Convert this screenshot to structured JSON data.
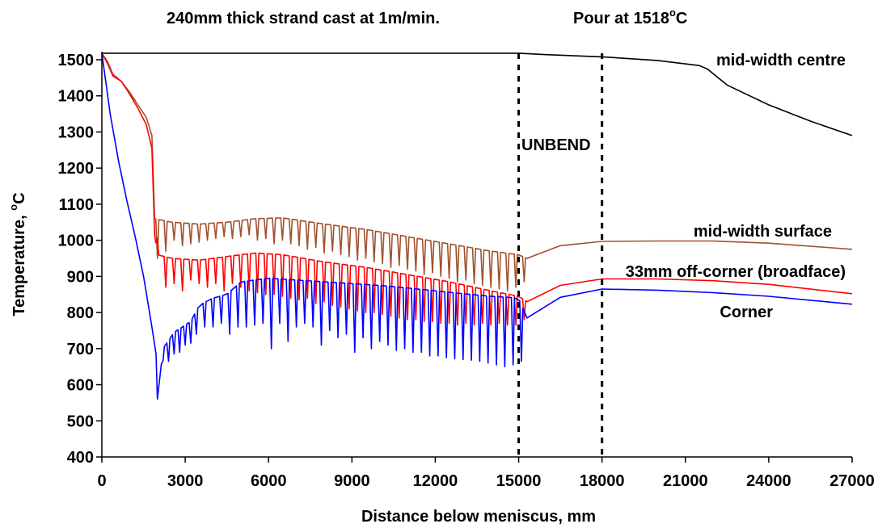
{
  "chart_data": {
    "type": "line",
    "title_part1": "240mm thick strand cast at 1m/min.",
    "title_part2_pre": "Pour at 1518",
    "title_part2_sup": "o",
    "title_part2_post": "C",
    "xlabel": "Distance below meniscus, mm",
    "ylabel_pre": "Temperature, ",
    "ylabel_sup": "o",
    "ylabel_post": "C",
    "xlim": [
      0,
      27000
    ],
    "ylim": [
      400,
      1520
    ],
    "xticks": [
      0,
      3000,
      6000,
      9000,
      12000,
      15000,
      18000,
      21000,
      24000,
      27000
    ],
    "xtick_labels": [
      "0",
      "3000",
      "6000",
      "9000",
      "12000",
      "15000",
      "18000",
      "21000",
      "24000",
      "27000"
    ],
    "yticks": [
      400,
      500,
      600,
      700,
      800,
      900,
      1000,
      1100,
      1200,
      1300,
      1400,
      1500
    ],
    "ytick_labels": [
      "400",
      "500",
      "600",
      "700",
      "800",
      "900",
      "1000",
      "1100",
      "1200",
      "1300",
      "1400",
      "1500"
    ],
    "grid": false,
    "vertical_markers": [
      15000,
      18000
    ],
    "annotations": {
      "unbend": "UNBEND"
    },
    "series": [
      {
        "name": "mid-width centre",
        "color": "#000000",
        "points": [
          [
            0,
            1518
          ],
          [
            15000,
            1518
          ],
          [
            16000,
            1514
          ],
          [
            18000,
            1508
          ],
          [
            20000,
            1498
          ],
          [
            21500,
            1484
          ],
          [
            21800,
            1474
          ],
          [
            22500,
            1430
          ],
          [
            24000,
            1375
          ],
          [
            25500,
            1330
          ],
          [
            27000,
            1290
          ]
        ]
      },
      {
        "name": "mid-width surface",
        "color": "#a0522d",
        "points": [
          [
            0,
            1518
          ],
          [
            200,
            1495
          ],
          [
            400,
            1460
          ],
          [
            700,
            1440
          ],
          [
            1000,
            1410
          ],
          [
            1300,
            1375
          ],
          [
            1600,
            1340
          ],
          [
            1800,
            1290
          ],
          [
            1900,
            1060
          ],
          [
            2500,
            1050
          ],
          [
            3500,
            1045
          ],
          [
            4500,
            1050
          ],
          [
            5500,
            1060
          ],
          [
            6500,
            1062
          ],
          [
            8000,
            1045
          ],
          [
            9500,
            1030
          ],
          [
            11000,
            1010
          ],
          [
            12500,
            990
          ],
          [
            14000,
            970
          ],
          [
            15000,
            960
          ],
          [
            15300,
            950
          ],
          [
            16500,
            985
          ],
          [
            18000,
            997
          ],
          [
            20000,
            998
          ],
          [
            22000,
            998
          ],
          [
            24000,
            992
          ],
          [
            27000,
            975
          ]
        ],
        "dips": [
          [
            2000,
            950
          ],
          [
            2300,
            970
          ],
          [
            2600,
            1000
          ],
          [
            2900,
            985
          ],
          [
            3200,
            990
          ],
          [
            3500,
            995
          ],
          [
            3800,
            1000
          ],
          [
            4100,
            1005
          ],
          [
            4400,
            1010
          ],
          [
            4700,
            1005
          ],
          [
            5000,
            1010
          ],
          [
            5300,
            1015
          ],
          [
            5600,
            1000
          ],
          [
            5900,
            1005
          ],
          [
            6200,
            990
          ],
          [
            6500,
            1000
          ],
          [
            6800,
            990
          ],
          [
            7100,
            985
          ],
          [
            7400,
            975
          ],
          [
            7700,
            980
          ],
          [
            8000,
            965
          ],
          [
            8300,
            970
          ],
          [
            8600,
            960
          ],
          [
            8900,
            955
          ],
          [
            9200,
            945
          ],
          [
            9500,
            950
          ],
          [
            9800,
            940
          ],
          [
            10100,
            935
          ],
          [
            10400,
            925
          ],
          [
            10700,
            930
          ],
          [
            11000,
            920
          ],
          [
            11300,
            915
          ],
          [
            11600,
            905
          ],
          [
            11900,
            910
          ],
          [
            12200,
            900
          ],
          [
            12500,
            895
          ],
          [
            12800,
            885
          ],
          [
            13100,
            890
          ],
          [
            13400,
            880
          ],
          [
            13700,
            875
          ],
          [
            14000,
            870
          ],
          [
            14300,
            865
          ],
          [
            14600,
            860
          ],
          [
            14900,
            870
          ],
          [
            15200,
            885
          ]
        ]
      },
      {
        "name": "33mm off-corner (broadface)",
        "color": "#ff0000",
        "points": [
          [
            0,
            1518
          ],
          [
            200,
            1490
          ],
          [
            400,
            1455
          ],
          [
            700,
            1440
          ],
          [
            1000,
            1405
          ],
          [
            1300,
            1365
          ],
          [
            1600,
            1320
          ],
          [
            1800,
            1255
          ],
          [
            1900,
            1015
          ],
          [
            2000,
            960
          ],
          [
            2500,
            950
          ],
          [
            3500,
            945
          ],
          [
            4500,
            955
          ],
          [
            5500,
            965
          ],
          [
            6500,
            960
          ],
          [
            8000,
            940
          ],
          [
            9500,
            925
          ],
          [
            11000,
            905
          ],
          [
            12500,
            885
          ],
          [
            14000,
            860
          ],
          [
            15000,
            845
          ],
          [
            15300,
            830
          ],
          [
            16500,
            875
          ],
          [
            18000,
            893
          ],
          [
            20000,
            893
          ],
          [
            22000,
            888
          ],
          [
            24000,
            878
          ],
          [
            27000,
            852
          ]
        ],
        "dips": [
          [
            2000,
            1005
          ],
          [
            2300,
            870
          ],
          [
            2600,
            880
          ],
          [
            2900,
            860
          ],
          [
            3200,
            890
          ],
          [
            3500,
            880
          ],
          [
            3800,
            870
          ],
          [
            4100,
            880
          ],
          [
            4400,
            860
          ],
          [
            4700,
            880
          ],
          [
            5000,
            870
          ],
          [
            5300,
            860
          ],
          [
            5600,
            855
          ],
          [
            5900,
            850
          ],
          [
            6200,
            850
          ],
          [
            6500,
            845
          ],
          [
            6800,
            840
          ],
          [
            7100,
            835
          ],
          [
            7400,
            840
          ],
          [
            7700,
            825
          ],
          [
            8000,
            830
          ],
          [
            8300,
            820
          ],
          [
            8600,
            815
          ],
          [
            8900,
            810
          ],
          [
            9200,
            805
          ],
          [
            9500,
            800
          ],
          [
            9800,
            800
          ],
          [
            10100,
            795
          ],
          [
            10400,
            790
          ],
          [
            10700,
            785
          ],
          [
            11000,
            780
          ],
          [
            11300,
            780
          ],
          [
            11600,
            775
          ],
          [
            11900,
            775
          ],
          [
            12200,
            770
          ],
          [
            12500,
            770
          ],
          [
            12800,
            765
          ],
          [
            13100,
            770
          ],
          [
            13400,
            765
          ],
          [
            13700,
            770
          ],
          [
            14000,
            765
          ],
          [
            14300,
            770
          ],
          [
            14600,
            765
          ],
          [
            14900,
            765
          ],
          [
            15200,
            780
          ]
        ]
      },
      {
        "name": "Corner",
        "color": "#0000ff",
        "points": [
          [
            0,
            1518
          ],
          [
            300,
            1350
          ],
          [
            600,
            1220
          ],
          [
            900,
            1110
          ],
          [
            1200,
            1010
          ],
          [
            1500,
            900
          ],
          [
            1800,
            760
          ],
          [
            1950,
            685
          ],
          [
            2000,
            560
          ],
          [
            2200,
            700
          ],
          [
            2600,
            745
          ],
          [
            3200,
            775
          ],
          [
            3500,
            820
          ],
          [
            4000,
            840
          ],
          [
            4500,
            850
          ],
          [
            5000,
            885
          ],
          [
            5500,
            890
          ],
          [
            6000,
            895
          ],
          [
            7000,
            890
          ],
          [
            8000,
            885
          ],
          [
            9000,
            880
          ],
          [
            10000,
            875
          ],
          [
            11000,
            868
          ],
          [
            12000,
            860
          ],
          [
            13000,
            852
          ],
          [
            14000,
            845
          ],
          [
            15000,
            840
          ],
          [
            15300,
            785
          ],
          [
            16500,
            842
          ],
          [
            18000,
            865
          ],
          [
            20000,
            862
          ],
          [
            22000,
            855
          ],
          [
            24000,
            845
          ],
          [
            27000,
            823
          ]
        ],
        "dips": [
          [
            2200,
            665
          ],
          [
            2400,
            665
          ],
          [
            2600,
            685
          ],
          [
            2800,
            690
          ],
          [
            3000,
            710
          ],
          [
            3200,
            715
          ],
          [
            3400,
            740
          ],
          [
            3700,
            760
          ],
          [
            4000,
            760
          ],
          [
            4300,
            770
          ],
          [
            4600,
            740
          ],
          [
            4900,
            760
          ],
          [
            5200,
            760
          ],
          [
            5500,
            765
          ],
          [
            5800,
            770
          ],
          [
            6100,
            700
          ],
          [
            6400,
            770
          ],
          [
            6700,
            720
          ],
          [
            7000,
            760
          ],
          [
            7300,
            770
          ],
          [
            7600,
            760
          ],
          [
            7900,
            710
          ],
          [
            8200,
            750
          ],
          [
            8500,
            730
          ],
          [
            8800,
            740
          ],
          [
            9100,
            690
          ],
          [
            9400,
            730
          ],
          [
            9700,
            700
          ],
          [
            10000,
            720
          ],
          [
            10300,
            710
          ],
          [
            10600,
            695
          ],
          [
            10900,
            700
          ],
          [
            11200,
            690
          ],
          [
            11500,
            690
          ],
          [
            11800,
            680
          ],
          [
            12100,
            680
          ],
          [
            12400,
            675
          ],
          [
            12700,
            672
          ],
          [
            13000,
            670
          ],
          [
            13300,
            668
          ],
          [
            13600,
            665
          ],
          [
            13900,
            660
          ],
          [
            14200,
            655
          ],
          [
            14500,
            650
          ],
          [
            14800,
            655
          ],
          [
            15100,
            665
          ]
        ]
      }
    ]
  }
}
